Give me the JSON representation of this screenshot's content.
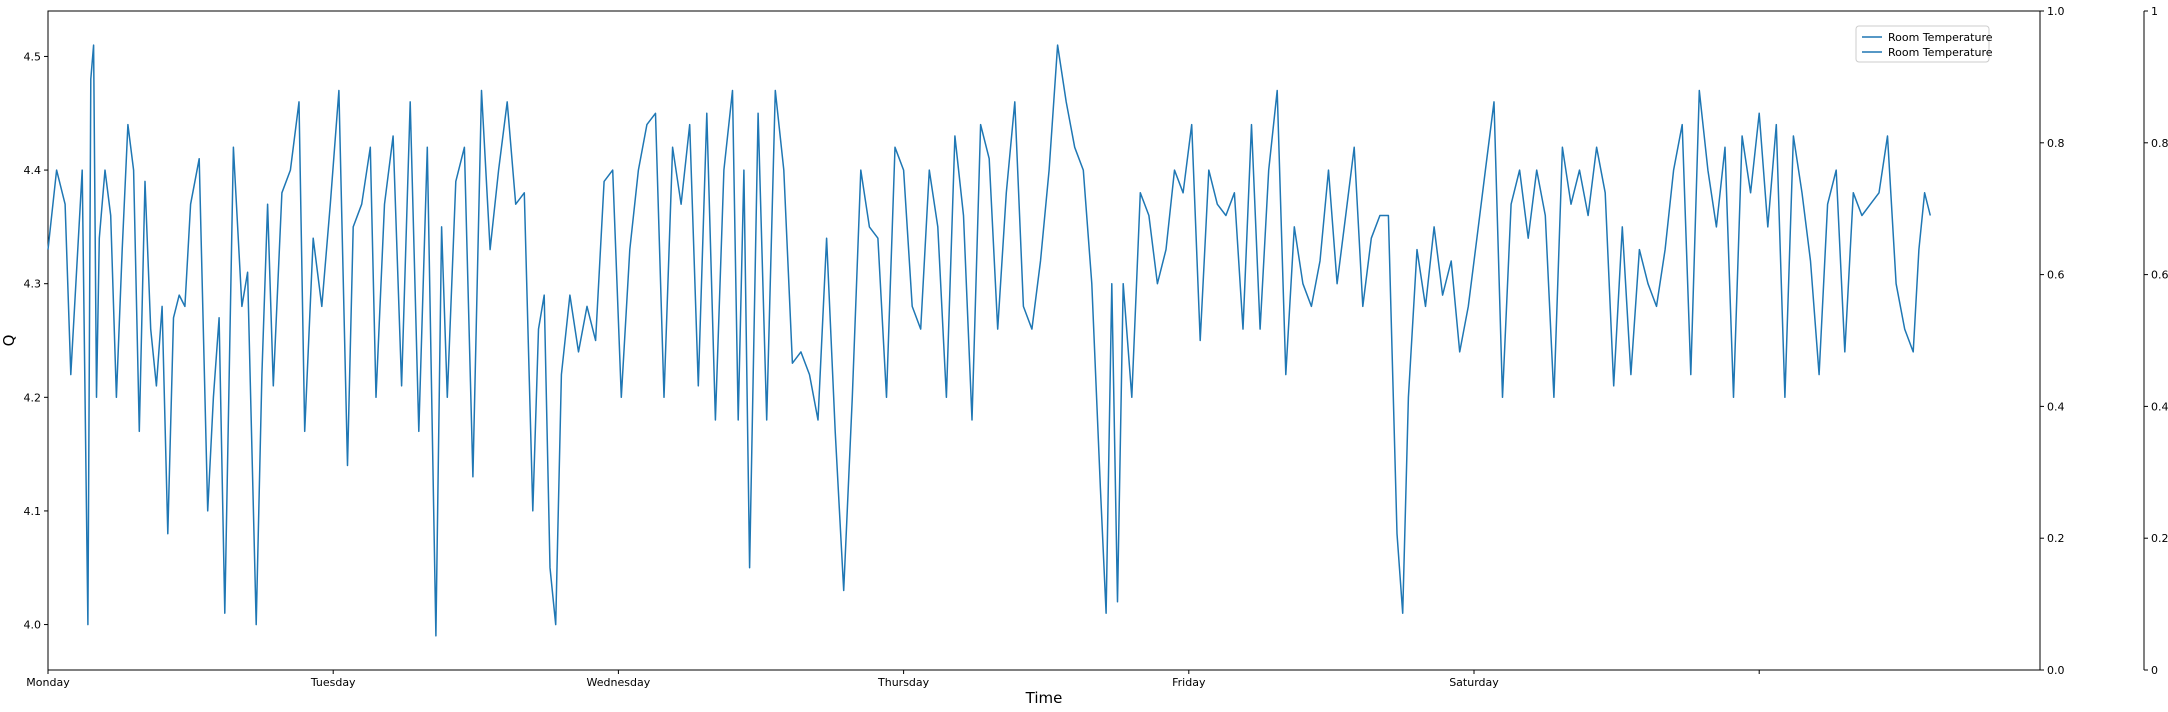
{
  "chart_data": {
    "type": "line",
    "title": "",
    "xlabel": "Time",
    "ylabel": "Q",
    "x_categories": [
      "Monday",
      "Tuesday",
      "Wednesday",
      "Thursday",
      "Friday",
      "Saturday",
      ""
    ],
    "x_range_days": [
      0,
      6.9
    ],
    "ylim": [
      3.96,
      4.54
    ],
    "yticks": [
      "4.0",
      "4.1",
      "4.2",
      "4.3",
      "4.4",
      "4.5"
    ],
    "secondary_axes": [
      {
        "ylim": [
          0,
          1
        ],
        "yticks": [
          "0.0",
          "0.2",
          "0.4",
          "0.6",
          "0.8",
          "1.0"
        ]
      },
      {
        "ylim": [
          0,
          1
        ],
        "yticks": [
          "0",
          "0.2",
          "0.4",
          "0.6",
          "0.8",
          "1"
        ]
      }
    ],
    "grid": false,
    "legend_position": "upper right",
    "legend": [
      "Room Temperature",
      "Room Temperature"
    ],
    "series": [
      {
        "name": "Room Temperature",
        "color": "#1f77b4",
        "keypoints": [
          [
            0.0,
            4.33
          ],
          [
            0.03,
            4.4
          ],
          [
            0.06,
            4.37
          ],
          [
            0.08,
            4.22
          ],
          [
            0.1,
            4.31
          ],
          [
            0.12,
            4.4
          ],
          [
            0.14,
            4.0
          ],
          [
            0.15,
            4.48
          ],
          [
            0.16,
            4.51
          ],
          [
            0.17,
            4.2
          ],
          [
            0.18,
            4.34
          ],
          [
            0.2,
            4.4
          ],
          [
            0.22,
            4.36
          ],
          [
            0.24,
            4.2
          ],
          [
            0.26,
            4.33
          ],
          [
            0.28,
            4.44
          ],
          [
            0.3,
            4.4
          ],
          [
            0.32,
            4.17
          ],
          [
            0.34,
            4.39
          ],
          [
            0.36,
            4.26
          ],
          [
            0.38,
            4.21
          ],
          [
            0.4,
            4.28
          ],
          [
            0.42,
            4.08
          ],
          [
            0.44,
            4.27
          ],
          [
            0.46,
            4.29
          ],
          [
            0.48,
            4.28
          ],
          [
            0.5,
            4.37
          ],
          [
            0.53,
            4.41
          ],
          [
            0.56,
            4.1
          ],
          [
            0.58,
            4.2
          ],
          [
            0.6,
            4.27
          ],
          [
            0.62,
            4.01
          ],
          [
            0.65,
            4.42
          ],
          [
            0.68,
            4.28
          ],
          [
            0.7,
            4.31
          ],
          [
            0.73,
            4.0
          ],
          [
            0.75,
            4.22
          ],
          [
            0.77,
            4.37
          ],
          [
            0.79,
            4.21
          ],
          [
            0.82,
            4.38
          ],
          [
            0.85,
            4.4
          ],
          [
            0.88,
            4.46
          ],
          [
            0.9,
            4.17
          ],
          [
            0.93,
            4.34
          ],
          [
            0.96,
            4.28
          ],
          [
            0.99,
            4.37
          ],
          [
            1.02,
            4.47
          ],
          [
            1.05,
            4.14
          ],
          [
            1.07,
            4.35
          ],
          [
            1.1,
            4.37
          ],
          [
            1.13,
            4.42
          ],
          [
            1.15,
            4.2
          ],
          [
            1.18,
            4.37
          ],
          [
            1.21,
            4.43
          ],
          [
            1.24,
            4.21
          ],
          [
            1.27,
            4.46
          ],
          [
            1.3,
            4.17
          ],
          [
            1.33,
            4.42
          ],
          [
            1.36,
            3.99
          ],
          [
            1.38,
            4.35
          ],
          [
            1.4,
            4.2
          ],
          [
            1.43,
            4.39
          ],
          [
            1.46,
            4.42
          ],
          [
            1.49,
            4.13
          ],
          [
            1.52,
            4.47
          ],
          [
            1.55,
            4.33
          ],
          [
            1.58,
            4.4
          ],
          [
            1.61,
            4.46
          ],
          [
            1.64,
            4.37
          ],
          [
            1.67,
            4.38
          ],
          [
            1.7,
            4.1
          ],
          [
            1.72,
            4.26
          ],
          [
            1.74,
            4.29
          ],
          [
            1.76,
            4.05
          ],
          [
            1.78,
            4.0
          ],
          [
            1.8,
            4.22
          ],
          [
            1.83,
            4.29
          ],
          [
            1.86,
            4.24
          ],
          [
            1.89,
            4.28
          ],
          [
            1.92,
            4.25
          ],
          [
            1.95,
            4.39
          ],
          [
            1.98,
            4.4
          ],
          [
            2.01,
            4.2
          ],
          [
            2.04,
            4.33
          ],
          [
            2.07,
            4.4
          ],
          [
            2.1,
            4.44
          ],
          [
            2.13,
            4.45
          ],
          [
            2.16,
            4.2
          ],
          [
            2.19,
            4.42
          ],
          [
            2.22,
            4.37
          ],
          [
            2.25,
            4.44
          ],
          [
            2.28,
            4.21
          ],
          [
            2.31,
            4.45
          ],
          [
            2.34,
            4.18
          ],
          [
            2.37,
            4.4
          ],
          [
            2.4,
            4.47
          ],
          [
            2.42,
            4.18
          ],
          [
            2.44,
            4.4
          ],
          [
            2.46,
            4.05
          ],
          [
            2.49,
            4.45
          ],
          [
            2.52,
            4.18
          ],
          [
            2.55,
            4.47
          ],
          [
            2.58,
            4.4
          ],
          [
            2.61,
            4.23
          ],
          [
            2.64,
            4.24
          ],
          [
            2.67,
            4.22
          ],
          [
            2.7,
            4.18
          ],
          [
            2.73,
            4.34
          ],
          [
            2.76,
            4.17
          ],
          [
            2.79,
            4.03
          ],
          [
            2.82,
            4.2
          ],
          [
            2.85,
            4.4
          ],
          [
            2.88,
            4.35
          ],
          [
            2.91,
            4.34
          ],
          [
            2.94,
            4.2
          ],
          [
            2.97,
            4.42
          ],
          [
            3.0,
            4.4
          ],
          [
            3.03,
            4.28
          ],
          [
            3.06,
            4.26
          ],
          [
            3.09,
            4.4
          ],
          [
            3.12,
            4.35
          ],
          [
            3.15,
            4.2
          ],
          [
            3.18,
            4.43
          ],
          [
            3.21,
            4.36
          ],
          [
            3.24,
            4.18
          ],
          [
            3.27,
            4.44
          ],
          [
            3.3,
            4.41
          ],
          [
            3.33,
            4.26
          ],
          [
            3.36,
            4.38
          ],
          [
            3.39,
            4.46
          ],
          [
            3.42,
            4.28
          ],
          [
            3.45,
            4.26
          ],
          [
            3.48,
            4.32
          ],
          [
            3.51,
            4.4
          ],
          [
            3.54,
            4.51
          ],
          [
            3.57,
            4.46
          ],
          [
            3.6,
            4.42
          ],
          [
            3.63,
            4.4
          ],
          [
            3.66,
            4.3
          ],
          [
            3.69,
            4.12
          ],
          [
            3.71,
            4.01
          ],
          [
            3.73,
            4.3
          ],
          [
            3.75,
            4.02
          ],
          [
            3.77,
            4.3
          ],
          [
            3.8,
            4.2
          ],
          [
            3.83,
            4.38
          ],
          [
            3.86,
            4.36
          ],
          [
            3.89,
            4.3
          ],
          [
            3.92,
            4.33
          ],
          [
            3.95,
            4.4
          ],
          [
            3.98,
            4.38
          ],
          [
            4.01,
            4.44
          ],
          [
            4.04,
            4.25
          ],
          [
            4.07,
            4.4
          ],
          [
            4.1,
            4.37
          ],
          [
            4.13,
            4.36
          ],
          [
            4.16,
            4.38
          ],
          [
            4.19,
            4.26
          ],
          [
            4.22,
            4.44
          ],
          [
            4.25,
            4.26
          ],
          [
            4.28,
            4.4
          ],
          [
            4.31,
            4.47
          ],
          [
            4.34,
            4.22
          ],
          [
            4.37,
            4.35
          ],
          [
            4.4,
            4.3
          ],
          [
            4.43,
            4.28
          ],
          [
            4.46,
            4.32
          ],
          [
            4.49,
            4.4
          ],
          [
            4.52,
            4.3
          ],
          [
            4.55,
            4.36
          ],
          [
            4.58,
            4.42
          ],
          [
            4.61,
            4.28
          ],
          [
            4.64,
            4.34
          ],
          [
            4.67,
            4.36
          ],
          [
            4.7,
            4.36
          ],
          [
            4.73,
            4.08
          ],
          [
            4.75,
            4.01
          ],
          [
            4.77,
            4.2
          ],
          [
            4.8,
            4.33
          ],
          [
            4.83,
            4.28
          ],
          [
            4.86,
            4.35
          ],
          [
            4.89,
            4.29
          ],
          [
            4.92,
            4.32
          ],
          [
            4.95,
            4.24
          ],
          [
            4.98,
            4.28
          ],
          [
            5.01,
            4.34
          ],
          [
            5.04,
            4.4
          ],
          [
            5.07,
            4.46
          ],
          [
            5.1,
            4.2
          ],
          [
            5.13,
            4.37
          ],
          [
            5.16,
            4.4
          ],
          [
            5.19,
            4.34
          ],
          [
            5.22,
            4.4
          ],
          [
            5.25,
            4.36
          ],
          [
            5.28,
            4.2
          ],
          [
            5.31,
            4.42
          ],
          [
            5.34,
            4.37
          ],
          [
            5.37,
            4.4
          ],
          [
            5.4,
            4.36
          ],
          [
            5.43,
            4.42
          ],
          [
            5.46,
            4.38
          ],
          [
            5.49,
            4.21
          ],
          [
            5.52,
            4.35
          ],
          [
            5.55,
            4.22
          ],
          [
            5.58,
            4.33
          ],
          [
            5.61,
            4.3
          ],
          [
            5.64,
            4.28
          ],
          [
            5.67,
            4.33
          ],
          [
            5.7,
            4.4
          ],
          [
            5.73,
            4.44
          ],
          [
            5.76,
            4.22
          ],
          [
            5.79,
            4.47
          ],
          [
            5.82,
            4.4
          ],
          [
            5.85,
            4.35
          ],
          [
            5.88,
            4.42
          ],
          [
            5.91,
            4.2
          ],
          [
            5.94,
            4.43
          ],
          [
            5.97,
            4.38
          ],
          [
            6.0,
            4.45
          ],
          [
            6.03,
            4.35
          ],
          [
            6.06,
            4.44
          ],
          [
            6.09,
            4.2
          ],
          [
            6.12,
            4.43
          ],
          [
            6.15,
            4.38
          ],
          [
            6.18,
            4.32
          ],
          [
            6.21,
            4.22
          ],
          [
            6.24,
            4.37
          ],
          [
            6.27,
            4.4
          ],
          [
            6.3,
            4.24
          ],
          [
            6.33,
            4.38
          ],
          [
            6.36,
            4.36
          ],
          [
            6.39,
            4.37
          ],
          [
            6.42,
            4.38
          ],
          [
            6.45,
            4.43
          ],
          [
            6.48,
            4.3
          ],
          [
            6.51,
            4.26
          ],
          [
            6.54,
            4.24
          ],
          [
            6.56,
            4.33
          ],
          [
            6.58,
            4.38
          ],
          [
            6.6,
            4.36
          ]
        ]
      }
    ]
  }
}
